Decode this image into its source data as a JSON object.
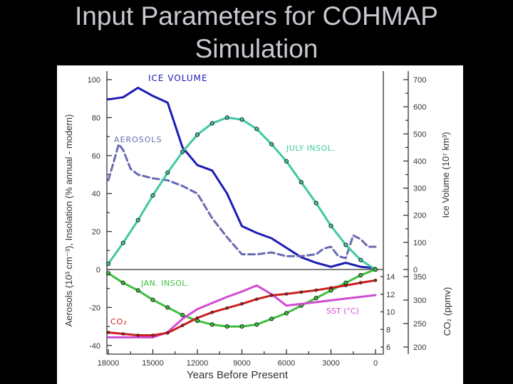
{
  "title_line1": "Input Parameters for COHMAP",
  "title_line2": "Simulation",
  "chart_data": {
    "type": "line",
    "xlabel": "Years Before Present",
    "x_ticks": [
      "18000",
      "15000",
      "12000",
      "9000",
      "6000",
      "3000",
      "0"
    ],
    "x_tick_values": [
      18000,
      15000,
      12000,
      9000,
      6000,
      3000,
      0
    ],
    "xlim": [
      18000,
      0
    ],
    "left_axis_label": "Aerosols (10³ cm⁻³), Insolation (% annual - modern)",
    "left_ticks": [
      "100",
      "80",
      "60",
      "40",
      "20",
      "0",
      "-20",
      "-40"
    ],
    "left_tick_values": [
      100,
      80,
      60,
      40,
      20,
      0,
      -20,
      -40
    ],
    "ylim_left": [
      -40,
      100
    ],
    "ice_axis_label": "Ice Volume  (10⁷ km³)",
    "ice_ticks": [
      "700",
      "600",
      "500",
      "400",
      "300",
      "200",
      "100",
      "0"
    ],
    "ice_tick_values": [
      700,
      600,
      500,
      400,
      300,
      200,
      100,
      0
    ],
    "sst_ticks": [
      "14",
      "12",
      "10",
      "8",
      "6"
    ],
    "sst_tick_values": [
      14,
      12,
      10,
      8,
      6
    ],
    "co2_axis_label": "CO₂ (ppmv)",
    "co2_ticks": [
      "350",
      "300",
      "250",
      "200"
    ],
    "co2_tick_values": [
      350,
      300,
      250,
      200
    ],
    "series": [
      {
        "name": "ICE VOLUME",
        "axis": "ice",
        "color": "#1c1cb4",
        "style": "solid",
        "markers": false,
        "x": [
          18000,
          17000,
          16000,
          15000,
          14000,
          13000,
          12000,
          11000,
          10000,
          9000,
          8000,
          7000,
          6000,
          5000,
          4000,
          3000,
          2000,
          1000,
          0
        ],
        "y": [
          627,
          635,
          670,
          640,
          615,
          450,
          385,
          365,
          280,
          160,
          135,
          115,
          80,
          45,
          25,
          10,
          25,
          10,
          5
        ]
      },
      {
        "name": "AEROSOLS",
        "axis": "left",
        "color": "#6a6ab2",
        "style": "dashed",
        "markers": false,
        "x": [
          18000,
          17700,
          17300,
          17000,
          16500,
          16000,
          15000,
          14000,
          13000,
          12500,
          12000,
          11000,
          10000,
          9000,
          8000,
          7000,
          6000,
          5000,
          4000,
          3500,
          3000,
          2500,
          2000,
          1500,
          1000,
          500,
          0
        ],
        "y": [
          47,
          55,
          66,
          63,
          53,
          50,
          48,
          47,
          44,
          42,
          40,
          27,
          17,
          8,
          8,
          9,
          7,
          7,
          8,
          11,
          12,
          7,
          6,
          18,
          16,
          12,
          12
        ]
      },
      {
        "name": "JULY INSOL.",
        "axis": "left",
        "color": "#3ec9a4",
        "style": "solid",
        "markers": true,
        "x": [
          18000,
          17000,
          16000,
          15000,
          14000,
          13000,
          12000,
          11000,
          10000,
          9000,
          8000,
          7000,
          6000,
          5000,
          4000,
          3000,
          2000,
          1000,
          0
        ],
        "y": [
          3,
          14,
          26,
          39,
          51,
          62,
          71,
          77,
          80,
          79,
          74,
          66,
          57,
          46,
          35,
          23,
          13,
          5,
          0
        ]
      },
      {
        "name": "JAN. INSOL.",
        "axis": "left",
        "color": "#3cc03c",
        "style": "solid",
        "markers": true,
        "x": [
          18000,
          17000,
          16000,
          15000,
          14000,
          13000,
          12000,
          11000,
          10000,
          9000,
          8000,
          7000,
          6000,
          5000,
          4000,
          3000,
          2000,
          1000,
          0
        ],
        "y": [
          -2,
          -7,
          -11,
          -16,
          -20,
          -24,
          -27,
          -29,
          -30,
          -30,
          -29,
          -26,
          -23,
          -19,
          -15,
          -11,
          -7,
          -3,
          0
        ]
      },
      {
        "name": "SST (°C)",
        "axis": "sst",
        "color": "#d24ad2",
        "style": "solid",
        "markers": false,
        "x": [
          18000,
          17000,
          16000,
          15000,
          14000,
          13000,
          12000,
          11000,
          10000,
          9000,
          8000,
          7000,
          6000,
          5000,
          4000,
          3000,
          2000,
          1000,
          0
        ],
        "y": [
          7.1,
          7.1,
          7.1,
          7.1,
          7.7,
          9.2,
          10.3,
          11.0,
          11.7,
          12.3,
          13.0,
          12.0,
          10.7,
          10.9,
          11.1,
          11.3,
          11.5,
          11.7,
          11.9
        ]
      },
      {
        "name": "CO₂",
        "axis": "co2",
        "color": "#cc1e1e",
        "style": "solid",
        "markers": true,
        "x": [
          18000,
          17000,
          16000,
          15000,
          14000,
          13000,
          12000,
          11000,
          10000,
          9000,
          8000,
          7000,
          6000,
          5000,
          4000,
          3000,
          2000,
          1000,
          0
        ],
        "y": [
          231,
          228,
          225,
          225,
          230,
          246,
          262,
          274,
          283,
          292,
          302,
          310,
          313,
          317,
          321,
          326,
          331,
          337,
          342
        ]
      }
    ],
    "legend": "inline labels"
  }
}
